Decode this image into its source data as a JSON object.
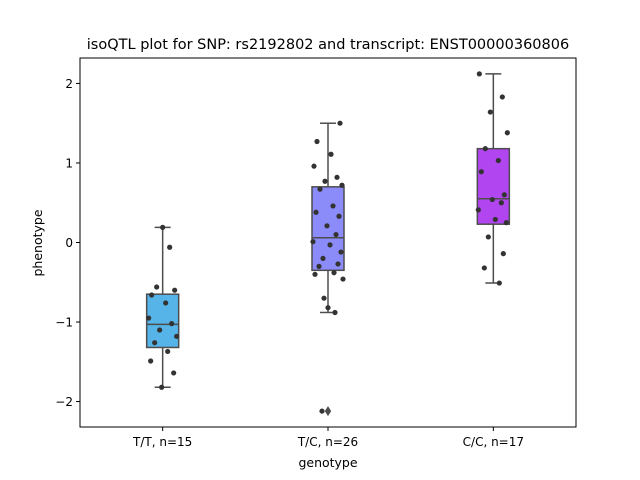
{
  "chart_data": {
    "type": "box",
    "title": "isoQTL plot for SNP: rs2192802 and transcript: ENST00000360806",
    "xlabel": "genotype",
    "ylabel": "phenotype",
    "ylim": [
      -2.32,
      2.32
    ],
    "yticks": [
      {
        "value": 2,
        "label": "2"
      },
      {
        "value": 1,
        "label": "1"
      },
      {
        "value": 0,
        "label": "0"
      },
      {
        "value": -1,
        "label": "−1"
      },
      {
        "value": -2,
        "label": "−2"
      }
    ],
    "grid": false,
    "groups": [
      {
        "label": "T/T, n=15",
        "color": "#56b4e9",
        "whisker_low": -1.82,
        "q1": -1.32,
        "median": -1.03,
        "q3": -0.65,
        "whisker_high": 0.19,
        "outliers": [],
        "points": [
          0.19,
          -0.06,
          -0.56,
          -0.6,
          -0.66,
          -0.76,
          -0.95,
          -1.02,
          -1.1,
          -1.18,
          -1.26,
          -1.37,
          -1.49,
          -1.64,
          -1.82
        ]
      },
      {
        "label": "T/C, n=26",
        "color": "#8b8bfa",
        "whisker_low": -0.88,
        "q1": -0.35,
        "median": 0.06,
        "q3": 0.7,
        "whisker_high": 1.5,
        "outliers": [
          -2.12
        ],
        "points": [
          1.5,
          1.27,
          1.11,
          0.96,
          0.82,
          0.77,
          0.72,
          0.67,
          0.46,
          0.38,
          0.33,
          0.21,
          0.1,
          0.01,
          -0.03,
          -0.12,
          -0.2,
          -0.27,
          -0.3,
          -0.38,
          -0.4,
          -0.46,
          -0.7,
          -0.82,
          -0.88,
          -2.12
        ]
      },
      {
        "label": "C/C, n=17",
        "color": "#b145f0",
        "whisker_low": -0.51,
        "q1": 0.23,
        "median": 0.55,
        "q3": 1.18,
        "whisker_high": 2.12,
        "outliers": [],
        "points": [
          2.12,
          1.83,
          1.64,
          1.38,
          1.18,
          1.03,
          0.89,
          0.6,
          0.54,
          0.5,
          0.41,
          0.29,
          0.25,
          0.07,
          -0.14,
          -0.32,
          -0.51
        ]
      }
    ]
  }
}
